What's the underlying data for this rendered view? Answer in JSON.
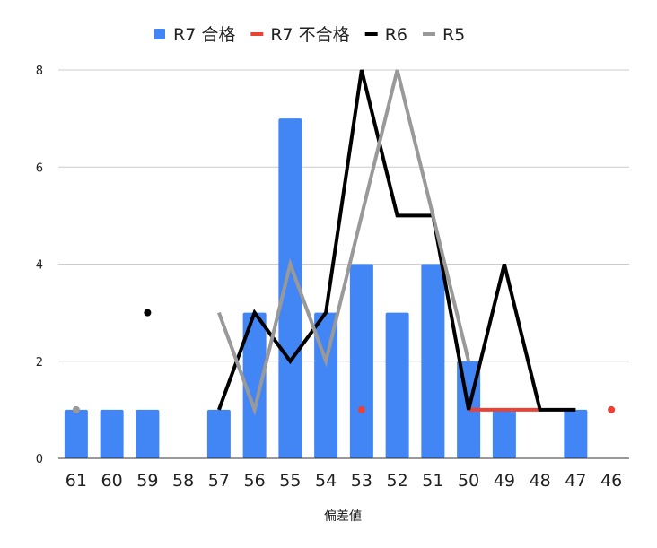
{
  "chart_data": {
    "type": "bar",
    "categories": [
      "61",
      "60",
      "59",
      "58",
      "57",
      "56",
      "55",
      "54",
      "53",
      "52",
      "51",
      "50",
      "49",
      "48",
      "47",
      "46"
    ],
    "xlabel": "偏差値",
    "ylabel": "",
    "ylim": [
      0,
      8
    ],
    "yticks": [
      0,
      2,
      4,
      6,
      8
    ],
    "grid": true,
    "legend_position": "top",
    "series": [
      {
        "name": "R7 合格",
        "type": "bar",
        "color": "#4285F4",
        "values": [
          1,
          1,
          1,
          null,
          1,
          3,
          7,
          3,
          4,
          3,
          4,
          2,
          1,
          null,
          1,
          null
        ]
      },
      {
        "name": "R7 不合格",
        "type": "line",
        "color": "#EA4335",
        "values": [
          null,
          null,
          null,
          null,
          null,
          null,
          null,
          null,
          1,
          null,
          null,
          1,
          1,
          1,
          null,
          1
        ]
      },
      {
        "name": "R6",
        "type": "line",
        "color": "#000000",
        "values": [
          null,
          null,
          3,
          null,
          1,
          3,
          2,
          3,
          8,
          5,
          5,
          1,
          4,
          1,
          1,
          null
        ]
      },
      {
        "name": "R5",
        "type": "line",
        "color": "#999999",
        "values": [
          1,
          null,
          null,
          null,
          3,
          1,
          4,
          2,
          5,
          8,
          5,
          2,
          null,
          null,
          null,
          null
        ]
      }
    ]
  }
}
